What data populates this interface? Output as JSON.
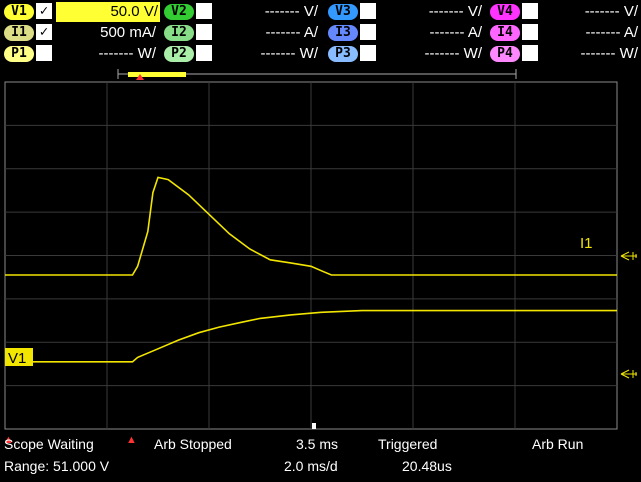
{
  "channels": {
    "v1": {
      "label": "V1",
      "checked": "✓",
      "value": "50.0 V/"
    },
    "i1": {
      "label": "I1",
      "checked": "✓",
      "value": "500 mA/"
    },
    "p1": {
      "label": "P1",
      "checked": "",
      "value": "------- W/"
    },
    "v2": {
      "label": "V2",
      "checked": "",
      "value": "------- V/"
    },
    "i2": {
      "label": "I2",
      "checked": "",
      "value": "------- A/"
    },
    "p2": {
      "label": "P2",
      "checked": "",
      "value": "------- W/"
    },
    "v3": {
      "label": "V3",
      "checked": "",
      "value": "------- V/"
    },
    "i3": {
      "label": "I3",
      "checked": "",
      "value": "------- A/"
    },
    "p3": {
      "label": "P3",
      "checked": "",
      "value": "------- W/"
    },
    "v4": {
      "label": "V4",
      "checked": "",
      "value": "------- V/"
    },
    "i4": {
      "label": "I4",
      "checked": "",
      "value": "------- A/"
    },
    "p4": {
      "label": "P4",
      "checked": "",
      "value": "------- W/"
    }
  },
  "colors": {
    "ch1": "#ffff33",
    "ch2": "#33cc33",
    "ch3": "#3399ff",
    "ch4": "#ff33ff",
    "ch1_dim": "#dddd88",
    "ch2_dim": "#88dd88",
    "ch3_dim": "#6688ff",
    "ch4_dim": "#ff66ff",
    "trace": "#f2e600",
    "grid": "#3a3a3a",
    "frame": "#8a8a8a"
  },
  "plot": {
    "trace_label_i1": "I1",
    "trace_label_v1": "V1",
    "ground_icon": "ground-arrow-icon",
    "trigger_icon": "trigger-marker-icon"
  },
  "chart_data": {
    "type": "line",
    "x_divisions": 6,
    "y_divisions": 8,
    "series": [
      {
        "name": "I1",
        "x": [
          0,
          1.25,
          1.3,
          1.4,
          1.45,
          1.5,
          1.6,
          1.8,
          2.0,
          2.2,
          2.4,
          2.6,
          2.8,
          3.0,
          3.1,
          3.2,
          6.0
        ],
        "y": [
          0,
          0,
          0.2,
          1.0,
          1.9,
          2.25,
          2.2,
          1.85,
          1.4,
          0.95,
          0.6,
          0.35,
          0.28,
          0.2,
          0.1,
          0,
          0
        ]
      },
      {
        "name": "V1",
        "x": [
          0,
          1.25,
          1.3,
          1.5,
          1.7,
          1.9,
          2.1,
          2.3,
          2.5,
          2.8,
          3.1,
          3.5,
          6.0
        ],
        "y": [
          -2,
          -2,
          -1.9,
          -1.7,
          -1.5,
          -1.33,
          -1.2,
          -1.1,
          -1.0,
          -0.92,
          -0.86,
          -0.82,
          -0.82
        ]
      }
    ]
  },
  "status": {
    "scope_state": "Scope Waiting",
    "range": "Range: 51.000 V",
    "arb_state": "Arb Stopped",
    "time_offset": "3.5 ms",
    "time_div": "2.0 ms/d",
    "trig_state": "Triggered",
    "trig_time": "20.48us",
    "arb_run": "Arb Run"
  }
}
